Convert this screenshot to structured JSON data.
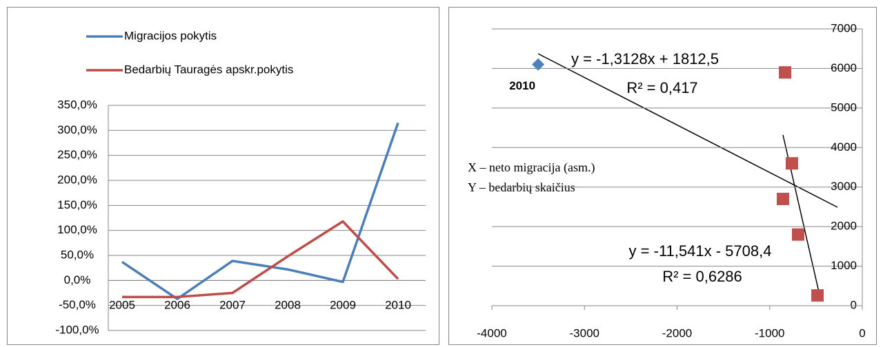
{
  "chart_data": [
    {
      "type": "line",
      "categories": [
        "2005",
        "2006",
        "2007",
        "2008",
        "2009",
        "2010"
      ],
      "series": [
        {
          "name": "Migracijos pokytis",
          "color": "#4a7ebb",
          "values": [
            37,
            -37,
            39,
            22,
            -3,
            315
          ]
        },
        {
          "name": "Bedarbių Tauragės apskr.pokytis",
          "color": "#be4b48",
          "values": [
            -33,
            -33,
            -25,
            48,
            118,
            3
          ]
        }
      ],
      "ylim": [
        -100,
        350
      ],
      "yticks": [
        {
          "value": -100,
          "label": "-100,0%"
        },
        {
          "value": -50,
          "label": "-50,0%"
        },
        {
          "value": 0,
          "label": "0,0%"
        },
        {
          "value": 50,
          "label": "50,0%"
        },
        {
          "value": 100,
          "label": "100,0%"
        },
        {
          "value": 150,
          "label": "150,0%"
        },
        {
          "value": 200,
          "label": "200,0%"
        },
        {
          "value": 250,
          "label": "250,0%"
        },
        {
          "value": 300,
          "label": "300,0%"
        },
        {
          "value": 350,
          "label": "350,0%"
        }
      ],
      "grid": true,
      "legend": "top"
    },
    {
      "type": "scatter",
      "series": [
        {
          "color": "#4f81bd",
          "marker": "diamond",
          "x": [
            -3500
          ],
          "values": [
            6100
          ],
          "value_labels": [
            "2010"
          ]
        },
        {
          "color": "#c0504d",
          "marker": "square",
          "x": [
            -834,
            -760,
            -857,
            -693,
            -484
          ],
          "values": [
            5900,
            3600,
            2700,
            1800,
            260
          ]
        }
      ],
      "xlim": [
        -4000,
        0
      ],
      "xticks": [
        -4000,
        -3000,
        -2000,
        -1000,
        0
      ],
      "ylim": [
        0,
        7000
      ],
      "yticks": [
        0,
        1000,
        2000,
        3000,
        4000,
        5000,
        6000,
        7000
      ],
      "grid": true,
      "annotations": [
        "y = -1,3128x + 1812,5",
        "R² = 0,417",
        "y = -11,541x - 5708,4",
        "R² = 0,6286",
        "X – neto migracija (asm.)",
        "Y – bedarbių skaičius"
      ]
    }
  ]
}
